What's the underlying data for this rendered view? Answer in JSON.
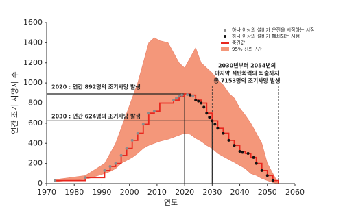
{
  "chart_data": {
    "type": "line",
    "x_label": "연도",
    "y_label": "연간 조기 사망자 수",
    "xlim": [
      1970,
      2060
    ],
    "ylim": [
      0,
      1600
    ],
    "xticks": [
      1970,
      1980,
      1990,
      2000,
      2010,
      2020,
      2030,
      2040,
      2050,
      2060
    ],
    "yticks": [
      0,
      200,
      400,
      600,
      800,
      1000,
      1200,
      1400,
      1600
    ],
    "grid": false,
    "legend": "upper right",
    "x": [
      1973,
      1984,
      1991,
      1993,
      1995,
      1997,
      1999,
      2001,
      2003,
      2005,
      2007,
      2009,
      2011,
      2014,
      2016,
      2018,
      2020,
      2022,
      2024,
      2026,
      2028,
      2030,
      2032,
      2034,
      2036,
      2038,
      2040,
      2042,
      2044,
      2046,
      2048,
      2050,
      2052,
      2054
    ],
    "series": [
      {
        "name": "중간값",
        "color": "#e8271e",
        "step": true,
        "values": [
          30,
          60,
          130,
          170,
          200,
          280,
          350,
          430,
          500,
          590,
          700,
          720,
          800,
          800,
          830,
          870,
          892,
          880,
          830,
          800,
          700,
          624,
          550,
          500,
          430,
          380,
          320,
          300,
          260,
          200,
          130,
          80,
          30,
          0
        ]
      }
    ],
    "band": {
      "name": "95% 신뢰구간",
      "color": "#f4977a",
      "upper": [
        40,
        80,
        200,
        300,
        400,
        550,
        700,
        850,
        1000,
        1200,
        1400,
        1450,
        1420,
        1400,
        1300,
        1200,
        1150,
        1250,
        1350,
        1200,
        1150,
        1100,
        1030,
        980,
        900,
        850,
        750,
        680,
        600,
        500,
        400,
        200,
        100,
        0
      ],
      "lower": [
        20,
        40,
        100,
        120,
        150,
        200,
        230,
        260,
        300,
        350,
        380,
        400,
        420,
        440,
        460,
        480,
        500,
        490,
        450,
        420,
        380,
        350,
        300,
        270,
        240,
        210,
        180,
        150,
        100,
        80,
        50,
        30,
        10,
        0
      ]
    },
    "points": [
      {
        "name": "하나 이상의 설비가 운전을 시작하는 시점",
        "color": "#8c8c8c",
        "x": [
          1973,
          1984,
          1991,
          1993,
          1995,
          1997,
          1999,
          2001,
          2003,
          2005,
          2007,
          2009,
          2016,
          2017,
          2018,
          2019,
          2021,
          2023
        ],
        "values": [
          30,
          60,
          130,
          170,
          200,
          280,
          350,
          430,
          500,
          590,
          700,
          720,
          830,
          850,
          870,
          880,
          885,
          870
        ]
      },
      {
        "name": "하나 이상의 설비가 폐쇄되는 시점",
        "color": "#111111",
        "x": [
          2022,
          2024,
          2025,
          2026,
          2027,
          2028,
          2029,
          2030,
          2031,
          2032,
          2034,
          2036,
          2038,
          2040,
          2041,
          2043,
          2045,
          2046,
          2048,
          2050,
          2052
        ],
        "values": [
          880,
          830,
          820,
          800,
          760,
          700,
          660,
          624,
          590,
          550,
          500,
          430,
          380,
          320,
          310,
          300,
          260,
          200,
          130,
          80,
          30
        ]
      }
    ],
    "guides": [
      {
        "x": 2020,
        "y": 892
      },
      {
        "x": 2030,
        "y": 624
      }
    ],
    "dashed_x": [
      2030,
      2054
    ],
    "annotations": [
      "2020 : 연간 892명의 조기사망 발생",
      "2030 : 연간 624명의 조기사망 발생",
      "2030년부터 2054년의",
      "마지막 석탄화력의 퇴출까지",
      "총 7153명의 조기사망 발생"
    ]
  }
}
